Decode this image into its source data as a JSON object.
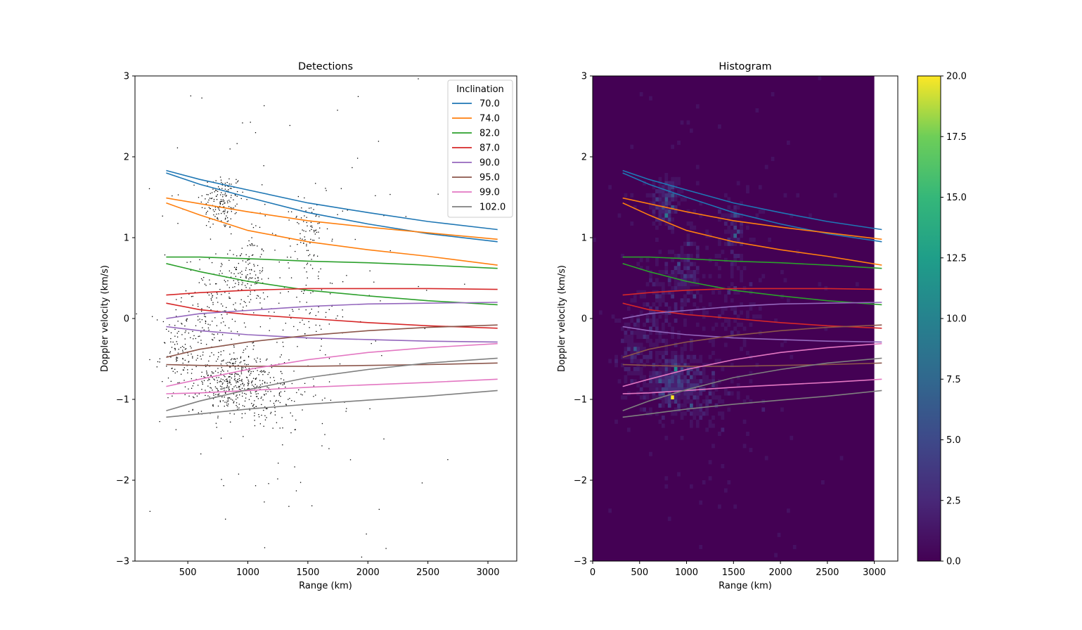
{
  "chart_data": [
    {
      "type": "scatter",
      "title": "Detections",
      "xlabel": "Range (km)",
      "ylabel": "Doppler velocity (km/s)",
      "xlim": [
        60,
        3240
      ],
      "ylim": [
        -3,
        3
      ],
      "xticks": [
        500,
        1000,
        1500,
        2000,
        2500,
        3000
      ],
      "yticks": [
        -3,
        -2,
        -1,
        0,
        1,
        2,
        3
      ],
      "legend": {
        "title": "Inclination",
        "position": "top-right"
      },
      "detections_note": "black point cloud of ~1500 individual detections",
      "clusters": [
        {
          "x": 780,
          "y": 1.45,
          "sx": 90,
          "sy": 0.18,
          "n": 160
        },
        {
          "x": 1000,
          "y": 0.55,
          "sx": 70,
          "sy": 0.25,
          "n": 120
        },
        {
          "x": 700,
          "y": 0.1,
          "sx": 120,
          "sy": 0.35,
          "n": 140
        },
        {
          "x": 450,
          "y": -0.45,
          "sx": 90,
          "sy": 0.2,
          "n": 90
        },
        {
          "x": 850,
          "y": -0.78,
          "sx": 150,
          "sy": 0.18,
          "n": 320
        },
        {
          "x": 1100,
          "y": -0.9,
          "sx": 200,
          "sy": 0.25,
          "n": 160
        },
        {
          "x": 1500,
          "y": 1.1,
          "sx": 70,
          "sy": 0.2,
          "n": 60
        },
        {
          "x": 1500,
          "y": 0.3,
          "sx": 150,
          "sy": 0.3,
          "n": 60
        },
        {
          "x": 1200,
          "y": 0.0,
          "sx": 500,
          "sy": 1.0,
          "n": 180
        }
      ]
    },
    {
      "type": "heatmap",
      "title": "Histogram",
      "xlabel": "Range (km)",
      "ylabel": "Doppler velocity (km/s)",
      "xlim": [
        0,
        3250
      ],
      "ylim": [
        -3,
        3
      ],
      "xticks": [
        0,
        500,
        1000,
        1500,
        2000,
        2500,
        3000
      ],
      "yticks": [
        -3,
        -2,
        -1,
        0,
        1,
        2,
        3
      ],
      "hist_x_range": [
        0,
        3000
      ],
      "colorbar": {
        "min": 0.0,
        "max": 20.0,
        "ticks": [
          "0.0",
          "2.5",
          "5.0",
          "7.5",
          "10.0",
          "12.5",
          "15.0",
          "17.5",
          "20.0"
        ]
      },
      "hotspots": [
        {
          "x": 860,
          "y": -0.95,
          "v": 20
        },
        {
          "x": 870,
          "y": -0.65,
          "v": 11
        },
        {
          "x": 780,
          "y": 1.25,
          "v": 9
        },
        {
          "x": 850,
          "y": 1.55,
          "v": 6
        },
        {
          "x": 1520,
          "y": 1.05,
          "v": 7
        },
        {
          "x": 1520,
          "y": 1.3,
          "v": 5
        },
        {
          "x": 930,
          "y": 0.65,
          "v": 5
        },
        {
          "x": 450,
          "y": -0.4,
          "v": 6
        },
        {
          "x": 700,
          "y": -0.8,
          "v": 6
        },
        {
          "x": 1050,
          "y": -0.85,
          "v": 4
        },
        {
          "x": 1500,
          "y": 0.35,
          "v": 3
        }
      ]
    }
  ],
  "inclination_series": [
    {
      "name": "70.0",
      "color": "#1f77b4",
      "curves": [
        {
          "x": [
            320,
            600,
            1000,
            1500,
            2000,
            2500,
            3080
          ],
          "y": [
            1.83,
            1.72,
            1.59,
            1.43,
            1.31,
            1.2,
            1.1
          ]
        },
        {
          "x": [
            320,
            600,
            1000,
            1500,
            2000,
            2500,
            3080
          ],
          "y": [
            1.8,
            1.66,
            1.5,
            1.31,
            1.17,
            1.05,
            0.95
          ]
        }
      ]
    },
    {
      "name": "74.0",
      "color": "#ff7f0e",
      "curves": [
        {
          "x": [
            320,
            600,
            1000,
            1500,
            2000,
            2500,
            3080
          ],
          "y": [
            1.49,
            1.42,
            1.32,
            1.21,
            1.13,
            1.06,
            0.98
          ]
        },
        {
          "x": [
            320,
            600,
            1000,
            1500,
            2000,
            2500,
            3080
          ],
          "y": [
            1.43,
            1.28,
            1.09,
            0.95,
            0.85,
            0.77,
            0.66
          ]
        }
      ]
    },
    {
      "name": "82.0",
      "color": "#2ca02c",
      "curves": [
        {
          "x": [
            320,
            600,
            1000,
            1500,
            2000,
            2500,
            3080
          ],
          "y": [
            0.76,
            0.76,
            0.74,
            0.71,
            0.69,
            0.66,
            0.62
          ]
        },
        {
          "x": [
            320,
            600,
            1000,
            1500,
            2000,
            2500,
            3080
          ],
          "y": [
            0.68,
            0.58,
            0.46,
            0.35,
            0.28,
            0.22,
            0.17
          ]
        }
      ]
    },
    {
      "name": "87.0",
      "color": "#d62728",
      "curves": [
        {
          "x": [
            320,
            600,
            1000,
            1500,
            2000,
            2500,
            3080
          ],
          "y": [
            0.29,
            0.32,
            0.35,
            0.37,
            0.37,
            0.37,
            0.36
          ]
        },
        {
          "x": [
            320,
            600,
            1000,
            1500,
            2000,
            2500,
            3080
          ],
          "y": [
            0.19,
            0.11,
            0.05,
            0.0,
            -0.05,
            -0.09,
            -0.12
          ]
        }
      ]
    },
    {
      "name": "90.0",
      "color": "#9467bd",
      "curves": [
        {
          "x": [
            320,
            600,
            1000,
            1500,
            2000,
            2500,
            3080
          ],
          "y": [
            0.0,
            0.06,
            0.1,
            0.15,
            0.18,
            0.19,
            0.2
          ]
        },
        {
          "x": [
            320,
            600,
            1000,
            1500,
            2000,
            2500,
            3080
          ],
          "y": [
            -0.1,
            -0.15,
            -0.2,
            -0.24,
            -0.26,
            -0.28,
            -0.29
          ]
        }
      ]
    },
    {
      "name": "95.0",
      "color": "#8c564b",
      "curves": [
        {
          "x": [
            320,
            600,
            1000,
            1500,
            2000,
            2500,
            3080
          ],
          "y": [
            -0.48,
            -0.38,
            -0.29,
            -0.21,
            -0.15,
            -0.11,
            -0.08
          ]
        },
        {
          "x": [
            320,
            600,
            1000,
            1500,
            2000,
            2500,
            3080
          ],
          "y": [
            -0.57,
            -0.58,
            -0.59,
            -0.59,
            -0.58,
            -0.57,
            -0.55
          ]
        }
      ]
    },
    {
      "name": "99.0",
      "color": "#e377c2",
      "curves": [
        {
          "x": [
            320,
            600,
            1000,
            1500,
            2000,
            2500,
            3080
          ],
          "y": [
            -0.84,
            -0.75,
            -0.63,
            -0.51,
            -0.42,
            -0.36,
            -0.31
          ]
        },
        {
          "x": [
            320,
            600,
            1000,
            1500,
            2000,
            2500,
            3080
          ],
          "y": [
            -0.93,
            -0.92,
            -0.89,
            -0.85,
            -0.82,
            -0.79,
            -0.75
          ]
        }
      ]
    },
    {
      "name": "102.0",
      "color": "#7f7f7f",
      "curves": [
        {
          "x": [
            320,
            600,
            1000,
            1500,
            2000,
            2500,
            3080
          ],
          "y": [
            -1.14,
            -1.02,
            -0.88,
            -0.73,
            -0.63,
            -0.55,
            -0.49
          ]
        },
        {
          "x": [
            320,
            600,
            1000,
            1500,
            2000,
            2500,
            3080
          ],
          "y": [
            -1.22,
            -1.18,
            -1.12,
            -1.06,
            -1.01,
            -0.96,
            -0.89
          ]
        }
      ]
    }
  ]
}
